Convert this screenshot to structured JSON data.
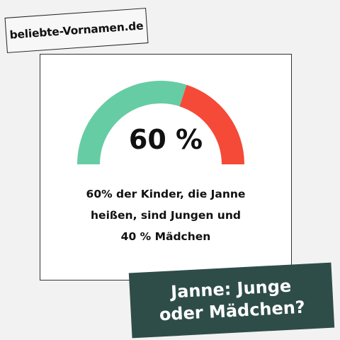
{
  "site": {
    "name": "beliebte-Vornamen.de"
  },
  "gauge": {
    "value_label": "60 %",
    "boys_share": 0.6,
    "girls_share": 0.4,
    "colors": {
      "boys": "#66cca4",
      "girls": "#f44a37",
      "background": "#ffffff"
    }
  },
  "description": {
    "lines": [
      "60% der Kinder, die Janne",
      "heißen, sind Jungen und",
      "40 % Mädchen"
    ]
  },
  "question": {
    "lines": [
      "Janne: Junge",
      "oder Mädchen?"
    ]
  },
  "colors": {
    "page_background": "#f2f2f2",
    "question_background": "#2e4d49"
  }
}
